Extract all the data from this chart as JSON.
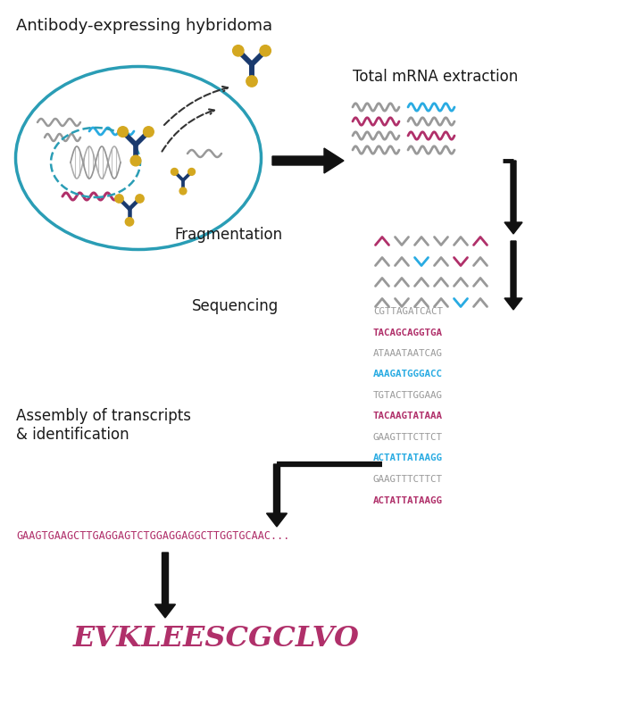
{
  "bg_color": "#ffffff",
  "label_color": "#1a1a1a",
  "pink_color": "#b0306a",
  "blue_seq_color": "#29abe2",
  "gray_seq_color": "#999999",
  "cell_ellipse_color": "#2a9db5",
  "antibody_blue": "#1a3a6e",
  "antibody_gold": "#d4a820",
  "labels": {
    "hybridoma": "Antibody-expressing hybridoma",
    "mrna": "Total mRNA extraction",
    "fragmentation": "Fragmentation",
    "sequencing": "Sequencing",
    "assembly": "Assembly of transcripts\n& identification"
  },
  "seq_lines": [
    {
      "text": "CGTTAGATCACT",
      "color": "#999999",
      "bold": false
    },
    {
      "text": "TACAGCAGGTGA",
      "color": "#b0306a",
      "bold": true
    },
    {
      "text": "ATAAATAATCAG",
      "color": "#999999",
      "bold": false
    },
    {
      "text": "AAAGATGGGACC",
      "color": "#29abe2",
      "bold": true
    },
    {
      "text": "TGTACTTGGAAG",
      "color": "#999999",
      "bold": false
    },
    {
      "text": "TACAAGTATAAA",
      "color": "#b0306a",
      "bold": true
    },
    {
      "text": "GAAGTTTCTTCT",
      "color": "#999999",
      "bold": false
    },
    {
      "text": "ACTATTATAAGG",
      "color": "#29abe2",
      "bold": true
    },
    {
      "text": "GAAGTTTCTTCT",
      "color": "#999999",
      "bold": false
    },
    {
      "text": "ACTATTATAAGG",
      "color": "#b0306a",
      "bold": true
    }
  ],
  "assembled_seq": "GAAGTGAAGCTTGAGGAGTCTGGAGGAGGCTTGGTGCAAC...",
  "protein_seq": "EVKLEESCGCLVO",
  "wavy_gray": "#999999",
  "wavy_pink": "#b0306a",
  "wavy_blue": "#29abe2"
}
